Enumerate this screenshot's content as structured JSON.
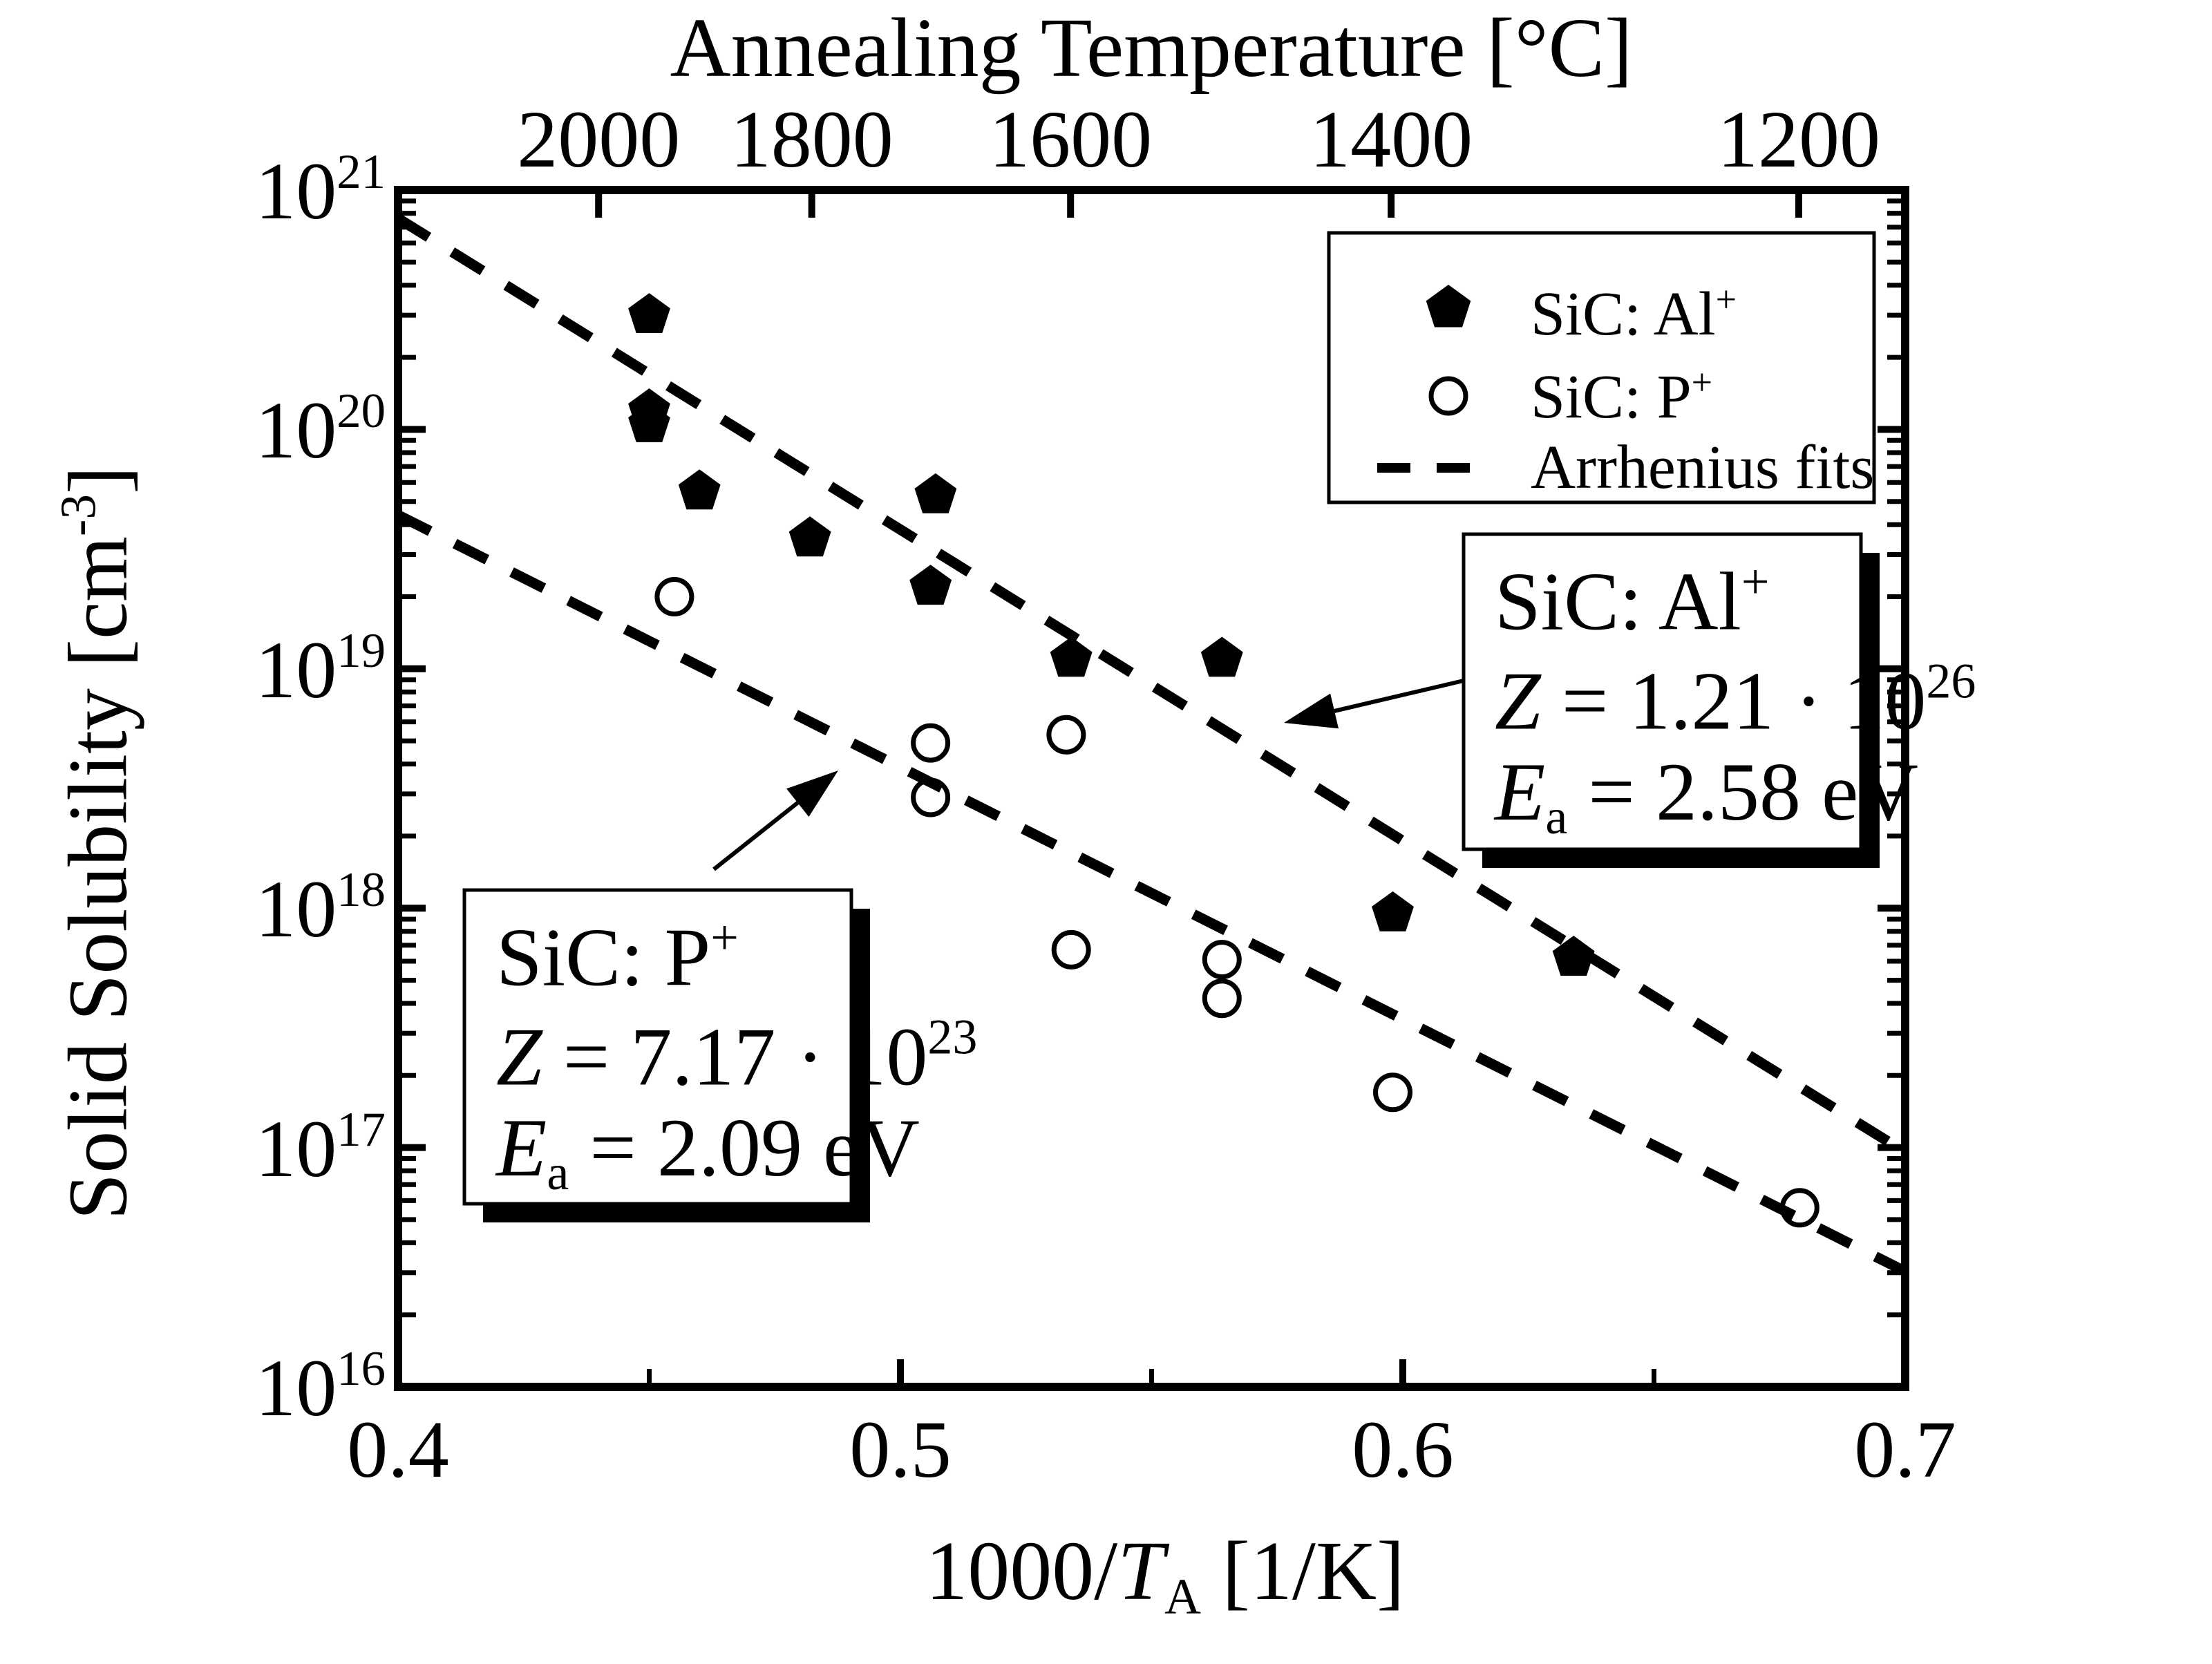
{
  "figure": {
    "background": "#ffffff",
    "ink": "#000000",
    "top_axis_title": "Annealing Temperature [°C]",
    "x_axis_label_segments": [
      {
        "t": "1000/"
      },
      {
        "t": "T",
        "italic": true
      },
      {
        "t": "A",
        "script": "sub"
      },
      {
        "t": " [1/K]"
      }
    ],
    "y_axis_label_segments": [
      {
        "t": "Solid Solubility [cm"
      },
      {
        "t": "-3",
        "script": "sup"
      },
      {
        "t": "]"
      }
    ]
  },
  "chart_data": {
    "type": "scatter",
    "title": "Annealing Temperature [°C]",
    "xlabel": "1000/T_A [1/K]",
    "ylabel": "Solid Solubility [cm^-3]",
    "grid": false,
    "x_axis": {
      "min": 0.4,
      "max": 0.7,
      "major_ticks": [
        0.4,
        0.5,
        0.6,
        0.7
      ],
      "major_tick_labels": [
        "0.4",
        "0.5",
        "0.6",
        "0.7"
      ],
      "minor_ticks": [
        0.45,
        0.55,
        0.65
      ]
    },
    "y_axis": {
      "scale": "log10",
      "min": 1e+16,
      "max": 1e+21,
      "tick_label_base": "10",
      "decade_exponents": [
        21,
        20,
        19,
        18,
        17,
        16
      ]
    },
    "top_axis": {
      "tick_labels": [
        "2000",
        "1800",
        "1600",
        "1400",
        "1200"
      ],
      "tick_values_celsius": [
        2000,
        1800,
        1600,
        1400,
        1200
      ],
      "mapping": "x = 1000 / (T[°C] + 273.15)"
    },
    "legend": {
      "position": "upper right",
      "entries": [
        {
          "marker": "filled-pentagon",
          "label_segments": [
            {
              "t": "SiC: Al"
            },
            {
              "t": "+",
              "script": "sup"
            }
          ]
        },
        {
          "marker": "open-circle",
          "label_segments": [
            {
              "t": "SiC: P"
            },
            {
              "t": "+",
              "script": "sup"
            }
          ]
        },
        {
          "marker": "dashed-line",
          "label_segments": [
            {
              "t": "Arrhenius fits"
            }
          ]
        }
      ]
    },
    "series": [
      {
        "name": "SiC: Al+",
        "marker": "filled-pentagon",
        "points": [
          {
            "x": 0.45,
            "y": 3e+20
          },
          {
            "x": 0.45,
            "y": 1.2e+20
          },
          {
            "x": 0.45,
            "y": 1.05e+20
          },
          {
            "x": 0.46,
            "y": 5.5e+19
          },
          {
            "x": 0.482,
            "y": 3.5e+19
          },
          {
            "x": 0.507,
            "y": 5.3e+19
          },
          {
            "x": 0.506,
            "y": 2.2e+19
          },
          {
            "x": 0.534,
            "y": 1.1e+19
          },
          {
            "x": 0.564,
            "y": 1.1e+19
          },
          {
            "x": 0.598,
            "y": 9.5e+17
          },
          {
            "x": 0.634,
            "y": 6.2e+17
          }
        ]
      },
      {
        "name": "SiC: P+",
        "marker": "open-circle",
        "points": [
          {
            "x": 0.455,
            "y": 2e+19
          },
          {
            "x": 0.506,
            "y": 4.9e+18
          },
          {
            "x": 0.506,
            "y": 2.9e+18
          },
          {
            "x": 0.533,
            "y": 5.3e+18
          },
          {
            "x": 0.534,
            "y": 6.7e+17
          },
          {
            "x": 0.564,
            "y": 6.1e+17
          },
          {
            "x": 0.564,
            "y": 4.2e+17
          },
          {
            "x": 0.598,
            "y": 1.7e+17
          },
          {
            "x": 0.679,
            "y": 5.6e+16
          }
        ]
      }
    ],
    "fits": [
      {
        "name": "SiC: Al+",
        "Z": 1.21e+26,
        "Ea_eV": 2.58,
        "x_range": [
          0.4,
          0.7
        ],
        "style": "dashed"
      },
      {
        "name": "SiC: P+",
        "Z": 7.17e+23,
        "Ea_eV": 2.09,
        "x_range": [
          0.4,
          0.7
        ],
        "style": "dashed"
      }
    ],
    "annotations": [
      {
        "id": "al",
        "lines": [
          [
            {
              "t": "SiC: Al"
            },
            {
              "t": "+",
              "script": "sup"
            }
          ],
          [
            {
              "t": "Z",
              "italic": true
            },
            {
              "t": " = 1.21 · 10"
            },
            {
              "t": "26",
              "script": "sup"
            }
          ],
          [
            {
              "t": "E",
              "italic": true
            },
            {
              "t": "a",
              "script": "sub"
            },
            {
              "t": " = 2.58 eV"
            }
          ]
        ]
      },
      {
        "id": "p",
        "lines": [
          [
            {
              "t": "SiC: P"
            },
            {
              "t": "+",
              "script": "sup"
            }
          ],
          [
            {
              "t": "Z",
              "italic": true
            },
            {
              "t": " = 7.17 · 10"
            },
            {
              "t": "23",
              "script": "sup"
            }
          ],
          [
            {
              "t": "E",
              "italic": true
            },
            {
              "t": "a",
              "script": "sub"
            },
            {
              "t": " = 2.09 eV"
            }
          ]
        ]
      }
    ],
    "physics": {
      "kB_eV_per_K": 8.617333e-05,
      "fit_formula": "N = Z · exp(-Ea / (kB · T))"
    }
  }
}
